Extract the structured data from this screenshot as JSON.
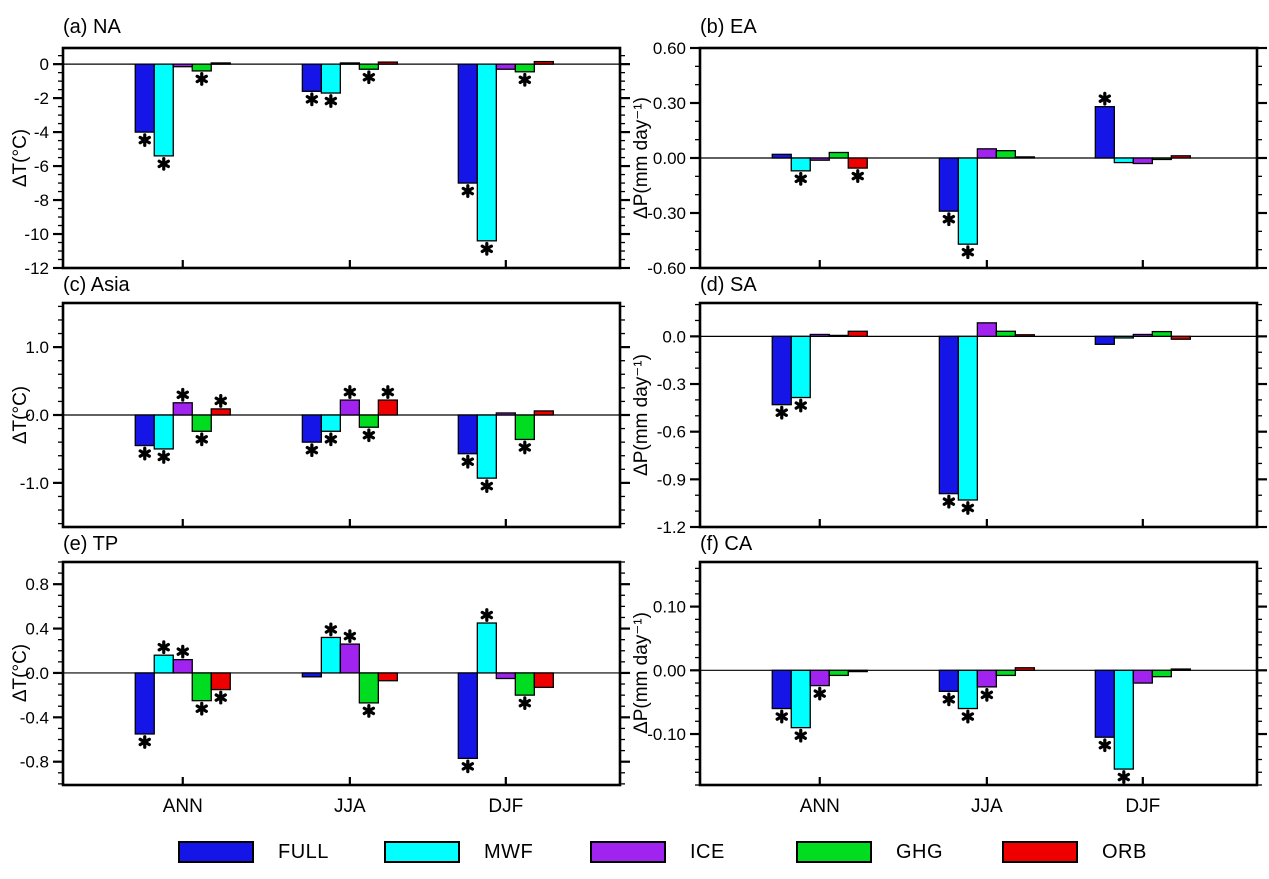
{
  "figure": {
    "description": "Six-panel bar chart figure of simulated temperature and precipitation changes by region, season and forcing experiment",
    "background": "#ffffff",
    "panel_rows": 3,
    "panel_cols": 2
  },
  "legend": {
    "entries": [
      {
        "label": "FULL",
        "color": "#1515e8"
      },
      {
        "label": "MWF",
        "color": "#00ffff"
      },
      {
        "label": "ICE",
        "color": "#a023ef"
      },
      {
        "label": "GHG",
        "color": "#00dd20"
      },
      {
        "label": "ORB",
        "color": "#ee0000"
      }
    ]
  },
  "chart_data": [
    {
      "id": "a",
      "type": "bar",
      "title": "(a) NA",
      "region": "NA",
      "ylabel": "ΔT(°C)",
      "categories": [
        "ANN",
        "JJA",
        "DJF"
      ],
      "show_x_labels": false,
      "ylim": [
        -12,
        0.95
      ],
      "minor_step": 0.5,
      "yticks": [
        {
          "v": 0,
          "label": "0"
        },
        {
          "v": -2,
          "label": "-2"
        },
        {
          "v": -4,
          "label": "-4"
        },
        {
          "v": -6,
          "label": "-6"
        },
        {
          "v": -8,
          "label": "-8"
        },
        {
          "v": -10,
          "label": "-10"
        },
        {
          "v": -12,
          "label": "-12"
        }
      ],
      "series": [
        {
          "name": "FULL",
          "color": "#1515e8",
          "values": [
            -4.0,
            -1.6,
            -7.0
          ],
          "significant": [
            true,
            true,
            true
          ]
        },
        {
          "name": "MWF",
          "color": "#00ffff",
          "values": [
            -5.4,
            -1.7,
            -10.4
          ],
          "significant": [
            true,
            true,
            true
          ]
        },
        {
          "name": "ICE",
          "color": "#a023ef",
          "values": [
            -0.15,
            0.07,
            -0.3
          ],
          "significant": [
            false,
            false,
            false
          ]
        },
        {
          "name": "GHG",
          "color": "#00dd20",
          "values": [
            -0.4,
            -0.3,
            -0.45
          ],
          "significant": [
            true,
            true,
            true
          ]
        },
        {
          "name": "ORB",
          "color": "#ee0000",
          "values": [
            0.07,
            0.12,
            0.15
          ],
          "significant": [
            false,
            false,
            false
          ]
        }
      ]
    },
    {
      "id": "b",
      "type": "bar",
      "title": "(b) EA",
      "region": "EA",
      "ylabel": "ΔP(mm day⁻¹)",
      "categories": [
        "ANN",
        "JJA",
        "DJF"
      ],
      "show_x_labels": false,
      "ylim": [
        -0.6,
        0.6
      ],
      "minor_step": 0.1,
      "yticks": [
        {
          "v": 0.6,
          "label": "0.60"
        },
        {
          "v": 0.3,
          "label": "0.30"
        },
        {
          "v": 0.0,
          "label": "0.00"
        },
        {
          "v": -0.3,
          "label": "-0.30"
        },
        {
          "v": -0.6,
          "label": "-0.60"
        }
      ],
      "series": [
        {
          "name": "FULL",
          "color": "#1515e8",
          "values": [
            0.02,
            -0.29,
            0.28
          ],
          "significant": [
            false,
            true,
            true
          ]
        },
        {
          "name": "MWF",
          "color": "#00ffff",
          "values": [
            -0.07,
            -0.47,
            -0.025
          ],
          "significant": [
            true,
            true,
            false
          ]
        },
        {
          "name": "ICE",
          "color": "#a023ef",
          "values": [
            -0.012,
            0.05,
            -0.03
          ],
          "significant": [
            false,
            false,
            false
          ]
        },
        {
          "name": "GHG",
          "color": "#00dd20",
          "values": [
            0.03,
            0.04,
            -0.008
          ],
          "significant": [
            false,
            false,
            false
          ]
        },
        {
          "name": "ORB",
          "color": "#ee0000",
          "values": [
            -0.055,
            0.006,
            0.012
          ],
          "significant": [
            true,
            false,
            false
          ]
        }
      ]
    },
    {
      "id": "c",
      "type": "bar",
      "title": "(c) Asia",
      "region": "Asia",
      "ylabel": "ΔT(°C)",
      "categories": [
        "ANN",
        "JJA",
        "DJF"
      ],
      "show_x_labels": false,
      "ylim": [
        -1.65,
        1.65
      ],
      "minor_step": 0.2,
      "yticks": [
        {
          "v": 1.0,
          "label": "1.0"
        },
        {
          "v": 0.0,
          "label": "0.0"
        },
        {
          "v": -1.0,
          "label": "-1.0"
        }
      ],
      "series": [
        {
          "name": "FULL",
          "color": "#1515e8",
          "values": [
            -0.45,
            -0.4,
            -0.57
          ],
          "significant": [
            true,
            true,
            true
          ]
        },
        {
          "name": "MWF",
          "color": "#00ffff",
          "values": [
            -0.5,
            -0.24,
            -0.93
          ],
          "significant": [
            true,
            true,
            true
          ]
        },
        {
          "name": "ICE",
          "color": "#a023ef",
          "values": [
            0.18,
            0.22,
            0.03
          ],
          "significant": [
            true,
            true,
            false
          ]
        },
        {
          "name": "GHG",
          "color": "#00dd20",
          "values": [
            -0.24,
            -0.18,
            -0.36
          ],
          "significant": [
            true,
            true,
            true
          ]
        },
        {
          "name": "ORB",
          "color": "#ee0000",
          "values": [
            0.09,
            0.22,
            0.06
          ],
          "significant": [
            true,
            true,
            false
          ]
        }
      ]
    },
    {
      "id": "d",
      "type": "bar",
      "title": "(d) SA",
      "region": "SA",
      "ylabel": "ΔP(mm day⁻¹)",
      "categories": [
        "ANN",
        "JJA",
        "DJF"
      ],
      "show_x_labels": false,
      "ylim": [
        -1.2,
        0.21
      ],
      "minor_step": 0.1,
      "yticks": [
        {
          "v": 0.0,
          "label": "0.0"
        },
        {
          "v": -0.3,
          "label": "-0.3"
        },
        {
          "v": -0.6,
          "label": "-0.6"
        },
        {
          "v": -0.9,
          "label": "-0.9"
        },
        {
          "v": -1.2,
          "label": "-1.2"
        }
      ],
      "series": [
        {
          "name": "FULL",
          "color": "#1515e8",
          "values": [
            -0.43,
            -0.99,
            -0.05
          ],
          "significant": [
            true,
            true,
            false
          ]
        },
        {
          "name": "MWF",
          "color": "#00ffff",
          "values": [
            -0.385,
            -1.03,
            -0.01
          ],
          "significant": [
            true,
            true,
            false
          ]
        },
        {
          "name": "ICE",
          "color": "#a023ef",
          "values": [
            0.012,
            0.085,
            0.012
          ],
          "significant": [
            false,
            false,
            false
          ]
        },
        {
          "name": "GHG",
          "color": "#00dd20",
          "values": [
            0.006,
            0.032,
            0.03
          ],
          "significant": [
            false,
            false,
            false
          ]
        },
        {
          "name": "ORB",
          "color": "#ee0000",
          "values": [
            0.032,
            0.01,
            -0.018
          ],
          "significant": [
            false,
            false,
            false
          ]
        }
      ]
    },
    {
      "id": "e",
      "type": "bar",
      "title": "(e) TP",
      "region": "TP",
      "ylabel": "ΔT(°C)",
      "categories": [
        "ANN",
        "JJA",
        "DJF"
      ],
      "show_x_labels": true,
      "ylim": [
        -1.01,
        1.0
      ],
      "minor_step": 0.1,
      "yticks": [
        {
          "v": 0.8,
          "label": "0.8"
        },
        {
          "v": 0.4,
          "label": "0.4"
        },
        {
          "v": 0.0,
          "label": "0.0"
        },
        {
          "v": -0.4,
          "label": "-0.4"
        },
        {
          "v": -0.8,
          "label": "-0.8"
        }
      ],
      "series": [
        {
          "name": "FULL",
          "color": "#1515e8",
          "values": [
            -0.55,
            -0.035,
            -0.77
          ],
          "significant": [
            true,
            false,
            true
          ]
        },
        {
          "name": "MWF",
          "color": "#00ffff",
          "values": [
            0.16,
            0.32,
            0.45
          ],
          "significant": [
            true,
            true,
            true
          ]
        },
        {
          "name": "ICE",
          "color": "#a023ef",
          "values": [
            0.12,
            0.26,
            -0.05
          ],
          "significant": [
            true,
            true,
            false
          ]
        },
        {
          "name": "GHG",
          "color": "#00dd20",
          "values": [
            -0.25,
            -0.27,
            -0.2
          ],
          "significant": [
            true,
            true,
            true
          ]
        },
        {
          "name": "ORB",
          "color": "#ee0000",
          "values": [
            -0.15,
            -0.07,
            -0.13
          ],
          "significant": [
            true,
            false,
            false
          ]
        }
      ]
    },
    {
      "id": "f",
      "type": "bar",
      "title": "(f) CA",
      "region": "CA",
      "ylabel": "ΔP(mm day⁻¹)",
      "categories": [
        "ANN",
        "JJA",
        "DJF"
      ],
      "show_x_labels": true,
      "ylim": [
        -0.18,
        0.17
      ],
      "minor_step": 0.02,
      "yticks": [
        {
          "v": 0.1,
          "label": "0.10"
        },
        {
          "v": 0.0,
          "label": "0.00"
        },
        {
          "v": -0.1,
          "label": "-0.10"
        }
      ],
      "series": [
        {
          "name": "FULL",
          "color": "#1515e8",
          "values": [
            -0.06,
            -0.033,
            -0.105
          ],
          "significant": [
            true,
            true,
            true
          ]
        },
        {
          "name": "MWF",
          "color": "#00ffff",
          "values": [
            -0.09,
            -0.06,
            -0.155
          ],
          "significant": [
            true,
            true,
            true
          ]
        },
        {
          "name": "ICE",
          "color": "#a023ef",
          "values": [
            -0.024,
            -0.026,
            -0.02
          ],
          "significant": [
            true,
            true,
            false
          ]
        },
        {
          "name": "GHG",
          "color": "#00dd20",
          "values": [
            -0.008,
            -0.008,
            -0.01
          ],
          "significant": [
            false,
            false,
            false
          ]
        },
        {
          "name": "ORB",
          "color": "#ee0000",
          "values": [
            -0.002,
            0.004,
            0.002
          ],
          "significant": [
            false,
            false,
            false
          ]
        }
      ]
    }
  ]
}
